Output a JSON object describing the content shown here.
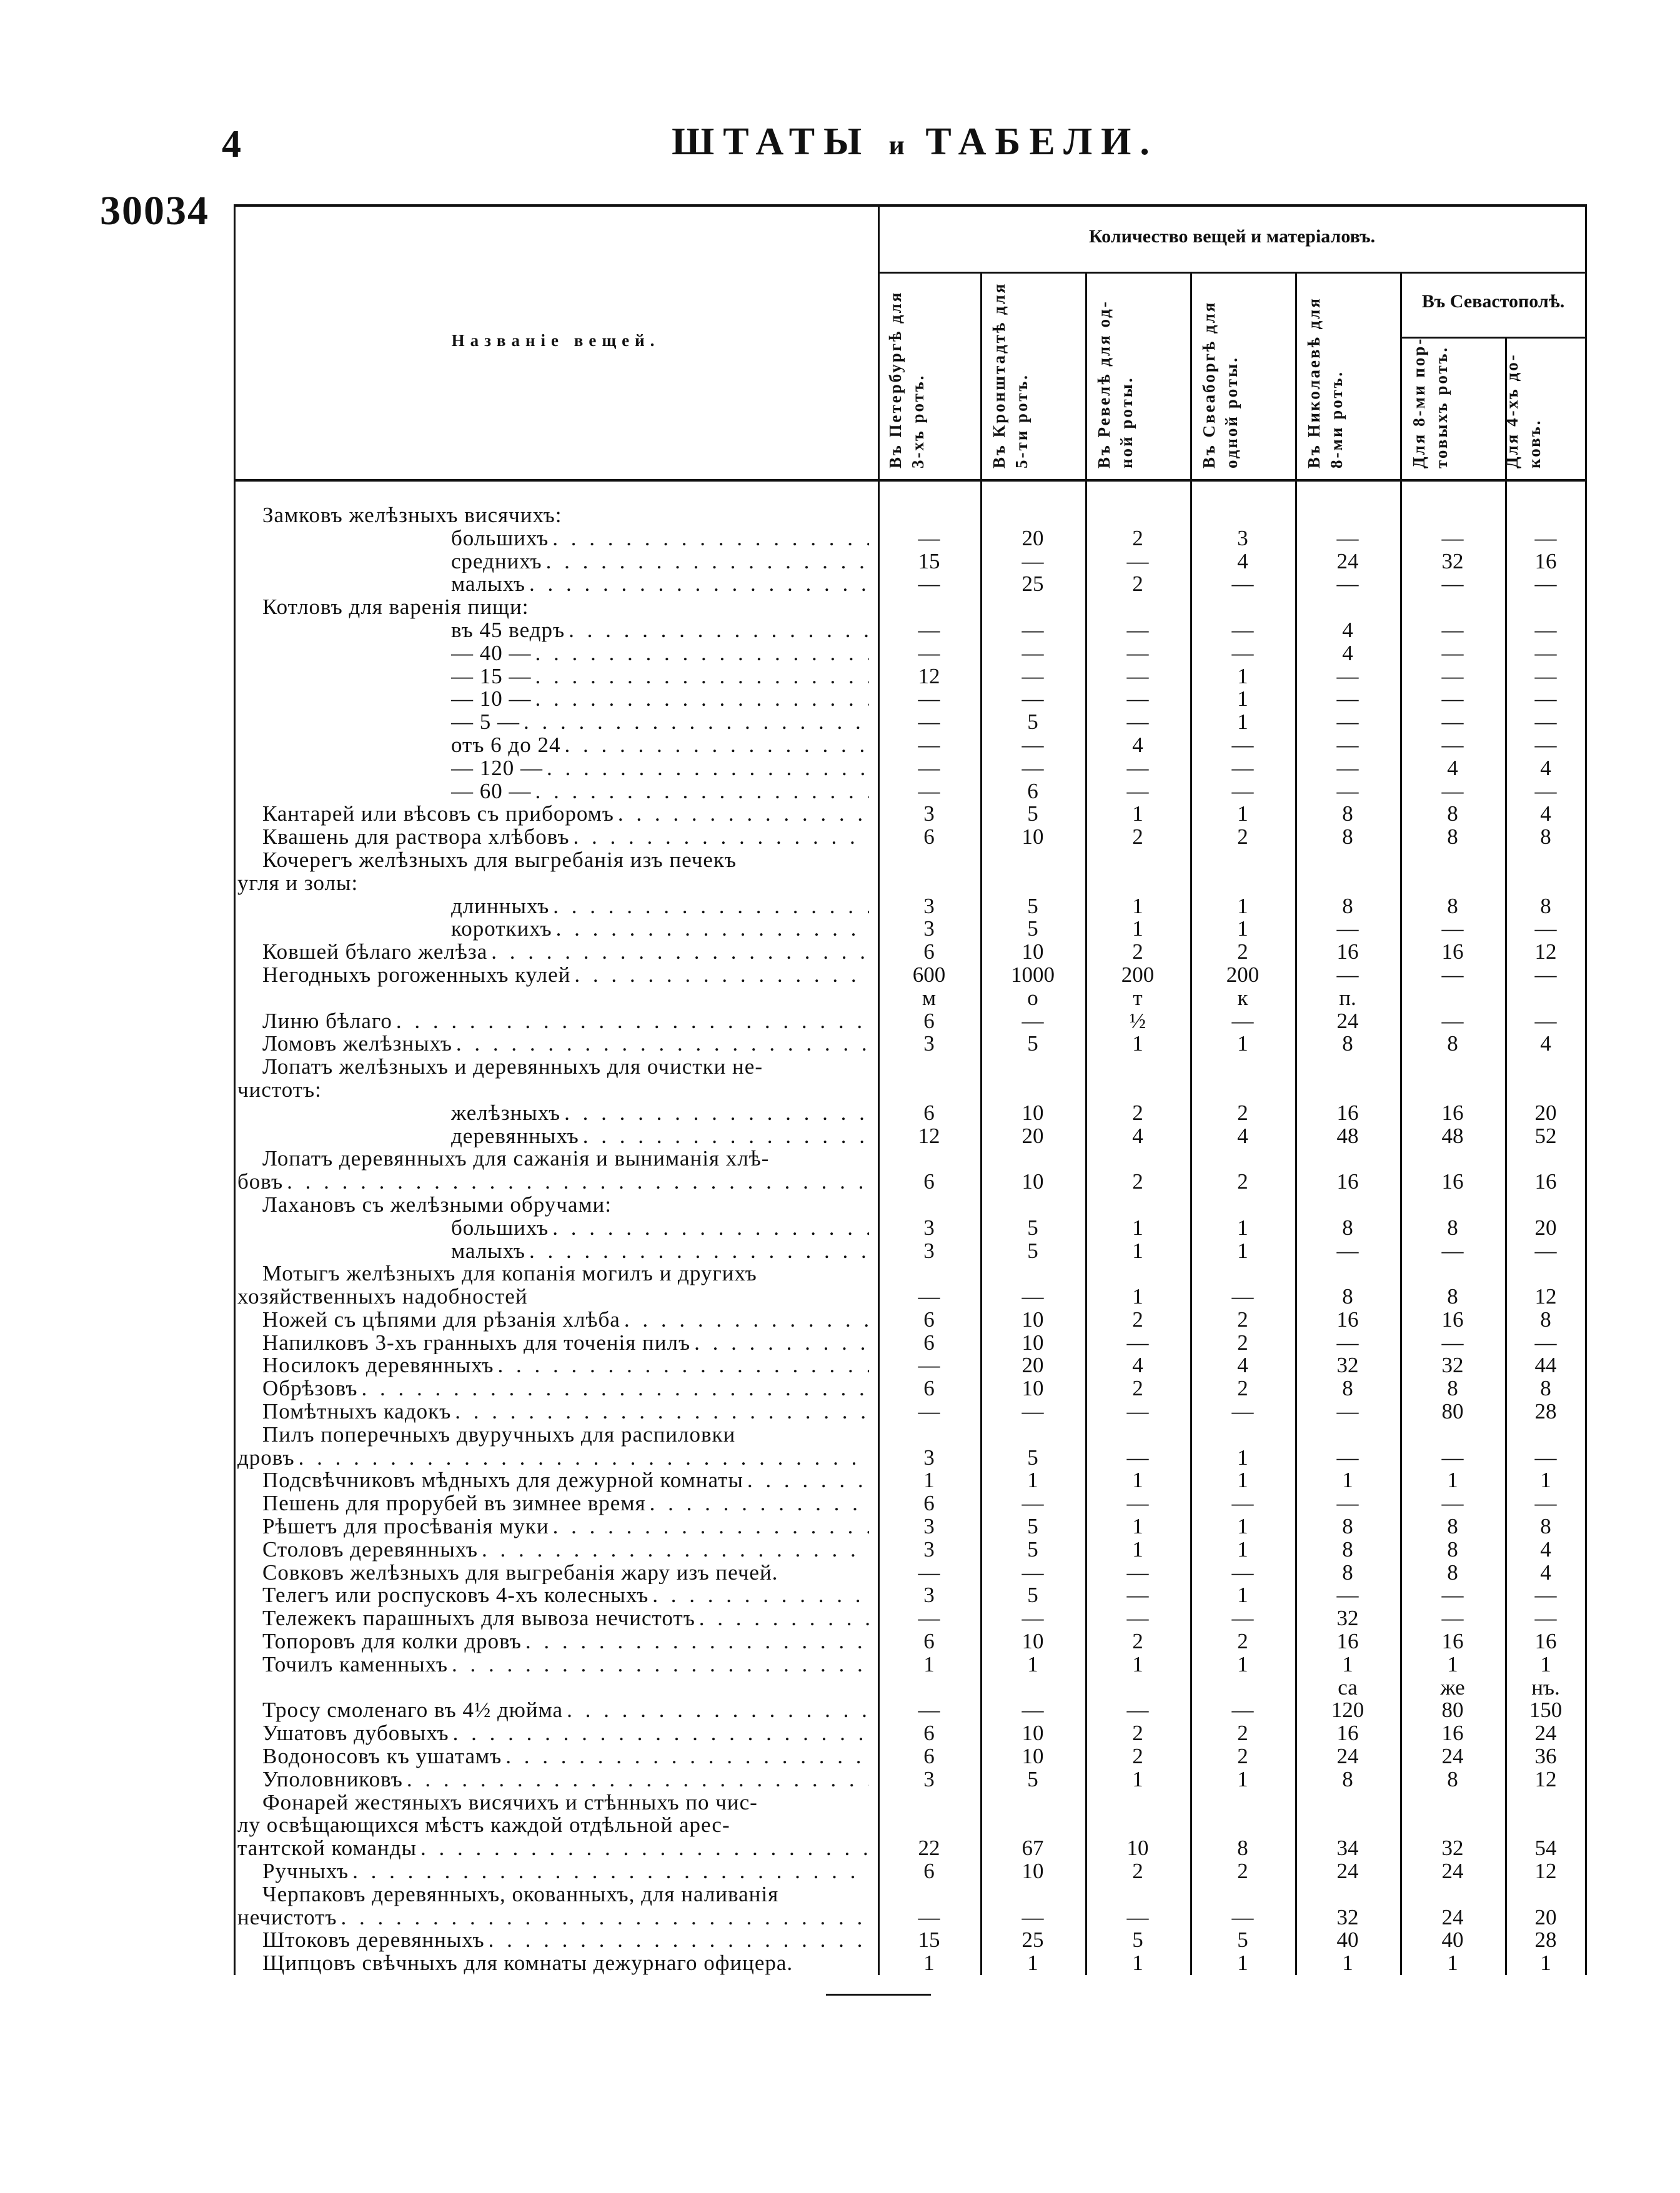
{
  "page_number": "4",
  "title_part1": "ШТАТЫ",
  "title_part2": "и",
  "title_part3": "ТАБЕЛИ.",
  "document_number": "30034",
  "table": {
    "name_header": "Названіе вещей.",
    "quantity_header": "Количество вещей и матеріаловъ.",
    "sevastopol_header": "Въ Севастополѣ.",
    "columns": [
      {
        "line1": "Въ Петербургѣ для",
        "line2": "3-хъ ротъ."
      },
      {
        "line1": "Въ Кронштадтѣ для",
        "line2": "5-ти ротъ."
      },
      {
        "line1": "Въ Ревелѣ для од-",
        "line2": "ной роты."
      },
      {
        "line1": "Въ Свеаборгѣ для",
        "line2": "одной роты."
      },
      {
        "line1": "Въ Николаевѣ для",
        "line2": "8-ми ротъ."
      },
      {
        "line1": "Для 8-ми пор-",
        "line2": "товыхъ ротъ."
      },
      {
        "line1": "Для 4-хъ до-",
        "line2": "ковъ."
      }
    ],
    "rows": [
      {
        "label": "Замковъ желѣзныхъ висячихъ:",
        "level": "main",
        "dots": false,
        "values": [
          "",
          "",
          "",
          "",
          "",
          "",
          ""
        ]
      },
      {
        "label": "большихъ",
        "level": "sub",
        "dots": true,
        "values": [
          "—",
          "20",
          "2",
          "3",
          "—",
          "—",
          "—"
        ]
      },
      {
        "label": "среднихъ",
        "level": "sub",
        "dots": true,
        "values": [
          "15",
          "—",
          "—",
          "4",
          "24",
          "32",
          "16"
        ]
      },
      {
        "label": "малыхъ",
        "level": "sub",
        "dots": true,
        "values": [
          "—",
          "25",
          "2",
          "—",
          "—",
          "—",
          "—"
        ]
      },
      {
        "label": "Котловъ для варенія пищи:",
        "level": "main",
        "dots": false,
        "values": [
          "",
          "",
          "",
          "",
          "",
          "",
          ""
        ]
      },
      {
        "label": "въ 45 ведръ",
        "level": "sub",
        "dots": true,
        "values": [
          "—",
          "—",
          "—",
          "—",
          "4",
          "—",
          "—"
        ]
      },
      {
        "label": "— 40 —",
        "level": "sub",
        "dots": true,
        "values": [
          "—",
          "—",
          "—",
          "—",
          "4",
          "—",
          "—"
        ]
      },
      {
        "label": "— 15 —",
        "level": "sub",
        "dots": true,
        "values": [
          "12",
          "—",
          "—",
          "1",
          "—",
          "—",
          "—"
        ]
      },
      {
        "label": "— 10 —",
        "level": "sub",
        "dots": true,
        "values": [
          "—",
          "—",
          "—",
          "1",
          "—",
          "—",
          "—"
        ]
      },
      {
        "label": "— 5 —",
        "level": "sub",
        "dots": true,
        "values": [
          "—",
          "5",
          "—",
          "1",
          "—",
          "—",
          "—"
        ]
      },
      {
        "label": "отъ 6 до 24",
        "level": "sub",
        "dots": true,
        "values": [
          "—",
          "—",
          "4",
          "—",
          "—",
          "—",
          "—"
        ]
      },
      {
        "label": "— 120 —",
        "level": "sub",
        "dots": true,
        "values": [
          "—",
          "—",
          "—",
          "—",
          "—",
          "4",
          "4"
        ]
      },
      {
        "label": "— 60 —",
        "level": "sub",
        "dots": true,
        "values": [
          "—",
          "6",
          "—",
          "—",
          "—",
          "—",
          "—"
        ]
      },
      {
        "label": "Кантарей или вѣсовъ съ приборомъ",
        "level": "main",
        "dots": true,
        "values": [
          "3",
          "5",
          "1",
          "1",
          "8",
          "8",
          "4"
        ]
      },
      {
        "label": "Квашень для раствора хлѣбовъ",
        "level": "main",
        "dots": true,
        "values": [
          "6",
          "10",
          "2",
          "2",
          "8",
          "8",
          "8"
        ]
      },
      {
        "label": "Кочерегъ желѣзныхъ для выгребанія изъ печекъ",
        "level": "main",
        "dots": false,
        "values": [
          "",
          "",
          "",
          "",
          "",
          "",
          ""
        ]
      },
      {
        "label": "угля и золы:",
        "level": "cont",
        "dots": false,
        "values": [
          "",
          "",
          "",
          "",
          "",
          "",
          ""
        ]
      },
      {
        "label": "длинныхъ",
        "level": "sub",
        "dots": true,
        "values": [
          "3",
          "5",
          "1",
          "1",
          "8",
          "8",
          "8"
        ]
      },
      {
        "label": "короткихъ",
        "level": "sub",
        "dots": true,
        "values": [
          "3",
          "5",
          "1",
          "1",
          "—",
          "—",
          "—"
        ]
      },
      {
        "label": "Ковшей бѣлаго желѣза",
        "level": "main",
        "dots": true,
        "values": [
          "6",
          "10",
          "2",
          "2",
          "16",
          "16",
          "12"
        ]
      },
      {
        "label": "Негодныхъ рогоженныхъ кулей",
        "level": "main",
        "dots": true,
        "values": [
          "600",
          "1000",
          "200",
          "200",
          "—",
          "—",
          "—"
        ]
      },
      {
        "label": "",
        "level": "main",
        "dots": false,
        "values": [
          "м",
          "о",
          "т",
          "к",
          "п.",
          "",
          ""
        ]
      },
      {
        "label": "Линю бѣлаго",
        "level": "main",
        "dots": true,
        "values": [
          "6",
          "—",
          "½",
          "—",
          "24",
          "—",
          "—"
        ]
      },
      {
        "label": "Ломовъ желѣзныхъ",
        "level": "main",
        "dots": true,
        "values": [
          "3",
          "5",
          "1",
          "1",
          "8",
          "8",
          "4"
        ]
      },
      {
        "label": "Лопатъ желѣзныхъ и деревянныхъ для очистки не-",
        "level": "main",
        "dots": false,
        "values": [
          "",
          "",
          "",
          "",
          "",
          "",
          ""
        ]
      },
      {
        "label": "чистотъ:",
        "level": "cont",
        "dots": false,
        "values": [
          "",
          "",
          "",
          "",
          "",
          "",
          ""
        ]
      },
      {
        "label": "желѣзныхъ",
        "level": "sub",
        "dots": true,
        "values": [
          "6",
          "10",
          "2",
          "2",
          "16",
          "16",
          "20"
        ]
      },
      {
        "label": "деревянныхъ",
        "level": "sub",
        "dots": true,
        "values": [
          "12",
          "20",
          "4",
          "4",
          "48",
          "48",
          "52"
        ]
      },
      {
        "label": "Лопатъ деревянныхъ для сажанія и выниманія хлѣ-",
        "level": "main",
        "dots": false,
        "values": [
          "",
          "",
          "",
          "",
          "",
          "",
          ""
        ]
      },
      {
        "label": "бовъ",
        "level": "cont",
        "dots": true,
        "values": [
          "6",
          "10",
          "2",
          "2",
          "16",
          "16",
          "16"
        ]
      },
      {
        "label": "Лахановъ съ желѣзными обручами:",
        "level": "main",
        "dots": false,
        "values": [
          "",
          "",
          "",
          "",
          "",
          "",
          ""
        ]
      },
      {
        "label": "большихъ",
        "level": "sub",
        "dots": true,
        "values": [
          "3",
          "5",
          "1",
          "1",
          "8",
          "8",
          "20"
        ]
      },
      {
        "label": "малыхъ",
        "level": "sub",
        "dots": true,
        "values": [
          "3",
          "5",
          "1",
          "1",
          "—",
          "—",
          "—"
        ]
      },
      {
        "label": "Мотыгъ желѣзныхъ для копанія могилъ и другихъ",
        "level": "main",
        "dots": false,
        "values": [
          "",
          "",
          "",
          "",
          "",
          "",
          ""
        ]
      },
      {
        "label": "хозяйственныхъ надобностей",
        "level": "cont",
        "dots": false,
        "values": [
          "—",
          "—",
          "1",
          "—",
          "8",
          "8",
          "12"
        ]
      },
      {
        "label": "Ножей съ цѣпями для рѣзанія хлѣба",
        "level": "main",
        "dots": true,
        "values": [
          "6",
          "10",
          "2",
          "2",
          "16",
          "16",
          "8"
        ]
      },
      {
        "label": "Напилковъ 3-хъ гранныхъ для точенія пилъ",
        "level": "main",
        "dots": true,
        "values": [
          "6",
          "10",
          "—",
          "2",
          "—",
          "—",
          "—"
        ]
      },
      {
        "label": "Носилокъ деревянныхъ",
        "level": "main",
        "dots": true,
        "values": [
          "—",
          "20",
          "4",
          "4",
          "32",
          "32",
          "44"
        ]
      },
      {
        "label": "Обрѣзовъ",
        "level": "main",
        "dots": true,
        "values": [
          "6",
          "10",
          "2",
          "2",
          "8",
          "8",
          "8"
        ]
      },
      {
        "label": "Помѣтныхъ кадокъ",
        "level": "main",
        "dots": true,
        "values": [
          "—",
          "—",
          "—",
          "—",
          "—",
          "80",
          "28"
        ]
      },
      {
        "label": "Пилъ поперечныхъ двуручныхъ для распиловки",
        "level": "main",
        "dots": false,
        "values": [
          "",
          "",
          "",
          "",
          "",
          "",
          ""
        ]
      },
      {
        "label": "дровъ",
        "level": "cont",
        "dots": true,
        "values": [
          "3",
          "5",
          "—",
          "1",
          "—",
          "—",
          "—"
        ]
      },
      {
        "label": "Подсвѣчниковъ мѣдныхъ для дежурной комнаты",
        "level": "main",
        "dots": true,
        "values": [
          "1",
          "1",
          "1",
          "1",
          "1",
          "1",
          "1"
        ]
      },
      {
        "label": "Пешень для прорубей въ зимнее время",
        "level": "main",
        "dots": true,
        "values": [
          "6",
          "—",
          "—",
          "—",
          "—",
          "—",
          "—"
        ]
      },
      {
        "label": "Рѣшетъ для просѣванія муки",
        "level": "main",
        "dots": true,
        "values": [
          "3",
          "5",
          "1",
          "1",
          "8",
          "8",
          "8"
        ]
      },
      {
        "label": "Столовъ деревянныхъ",
        "level": "main",
        "dots": true,
        "values": [
          "3",
          "5",
          "1",
          "1",
          "8",
          "8",
          "4"
        ]
      },
      {
        "label": "Совковъ желѣзныхъ для выгребанія жару изъ печей.",
        "level": "main",
        "dots": false,
        "values": [
          "—",
          "—",
          "—",
          "—",
          "8",
          "8",
          "4"
        ]
      },
      {
        "label": "Телегъ или роспусковъ 4-хъ колесныхъ",
        "level": "main",
        "dots": true,
        "values": [
          "3",
          "5",
          "—",
          "1",
          "—",
          "—",
          "—"
        ]
      },
      {
        "label": "Тележекъ парашныхъ для вывоза нечистотъ",
        "level": "main",
        "dots": true,
        "values": [
          "—",
          "—",
          "—",
          "—",
          "32",
          "—",
          "—"
        ]
      },
      {
        "label": "Топоровъ для колки дровъ",
        "level": "main",
        "dots": true,
        "values": [
          "6",
          "10",
          "2",
          "2",
          "16",
          "16",
          "16"
        ]
      },
      {
        "label": "Точилъ каменныхъ",
        "level": "main",
        "dots": true,
        "values": [
          "1",
          "1",
          "1",
          "1",
          "1",
          "1",
          "1"
        ]
      },
      {
        "label": "",
        "level": "main",
        "dots": false,
        "values": [
          "",
          "",
          "",
          "",
          "са",
          "же",
          "нъ."
        ]
      },
      {
        "label": "Тросу смоленаго въ 4½ дюйма",
        "level": "main",
        "dots": true,
        "values": [
          "—",
          "—",
          "—",
          "—",
          "120",
          "80",
          "150"
        ]
      },
      {
        "label": "Ушатовъ дубовыхъ",
        "level": "main",
        "dots": true,
        "values": [
          "6",
          "10",
          "2",
          "2",
          "16",
          "16",
          "24"
        ]
      },
      {
        "label": "Водоносовъ къ ушатамъ",
        "level": "main",
        "dots": true,
        "values": [
          "6",
          "10",
          "2",
          "2",
          "24",
          "24",
          "36"
        ]
      },
      {
        "label": "Уполовниковъ",
        "level": "main",
        "dots": true,
        "values": [
          "3",
          "5",
          "1",
          "1",
          "8",
          "8",
          "12"
        ]
      },
      {
        "label": "Фонарей жестяныхъ висячихъ и стѣнныхъ по чис-",
        "level": "main",
        "dots": false,
        "values": [
          "",
          "",
          "",
          "",
          "",
          "",
          ""
        ]
      },
      {
        "label": "лу освѣщающихся мѣстъ каждой отдѣльной арес-",
        "level": "cont",
        "dots": false,
        "values": [
          "",
          "",
          "",
          "",
          "",
          "",
          ""
        ]
      },
      {
        "label": "тантской команды",
        "level": "cont",
        "dots": true,
        "values": [
          "22",
          "67",
          "10",
          "8",
          "34",
          "32",
          "54"
        ]
      },
      {
        "label": "Ручныхъ",
        "level": "main",
        "dots": true,
        "values": [
          "6",
          "10",
          "2",
          "2",
          "24",
          "24",
          "12"
        ]
      },
      {
        "label": "Черпаковъ деревянныхъ, окованныхъ, для наливанія",
        "level": "main",
        "dots": false,
        "values": [
          "",
          "",
          "",
          "",
          "",
          "",
          ""
        ]
      },
      {
        "label": "нечистотъ",
        "level": "cont",
        "dots": true,
        "values": [
          "—",
          "—",
          "—",
          "—",
          "32",
          "24",
          "20"
        ]
      },
      {
        "label": "Штоковъ деревянныхъ",
        "level": "main",
        "dots": true,
        "values": [
          "15",
          "25",
          "5",
          "5",
          "40",
          "40",
          "28"
        ]
      },
      {
        "label": "Щипцовъ свѣчныхъ для комнаты дежурнаго офицера.",
        "level": "main",
        "dots": false,
        "values": [
          "1",
          "1",
          "1",
          "1",
          "1",
          "1",
          "1"
        ]
      }
    ]
  }
}
